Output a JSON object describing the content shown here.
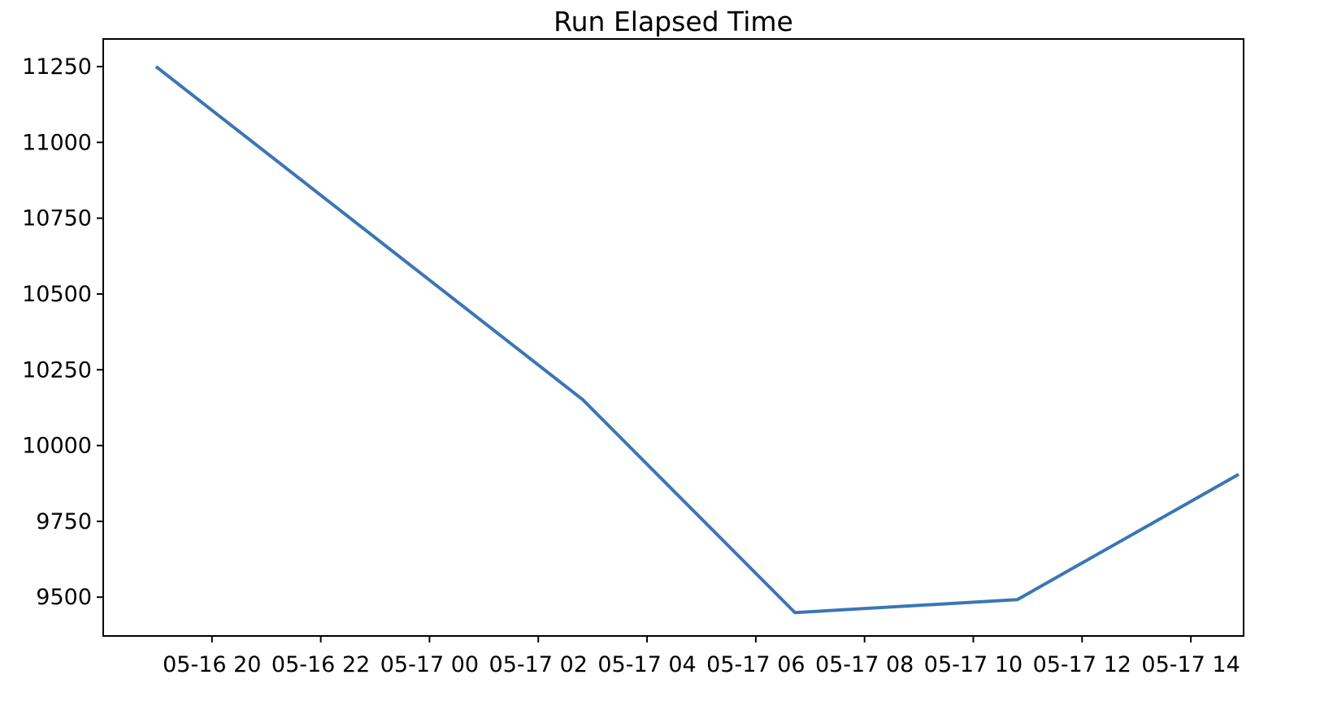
{
  "chart_data": {
    "type": "line",
    "title": "Run Elapsed Time",
    "grid": false,
    "legend": null,
    "background_color": "#ffffff",
    "axis_color": "#000000",
    "series": [
      {
        "name": "run-elapsed-time",
        "color": "#3b76b5",
        "line_width": 4,
        "points": [
          {
            "time": "05-16 19:00",
            "t_hours": 18.97,
            "value": 11250
          },
          {
            "time": "05-17 02:50",
            "t_hours": 26.82,
            "value": 10151
          },
          {
            "time": "05-17 06:45",
            "t_hours": 30.72,
            "value": 9449
          },
          {
            "time": "05-17 10:50",
            "t_hours": 34.81,
            "value": 9492
          },
          {
            "time": "05-17 14:55",
            "t_hours": 38.88,
            "value": 9905
          }
        ]
      }
    ],
    "x_axis": {
      "label": "",
      "tick_labels": [
        "05-16 20",
        "05-16 22",
        "05-17 00",
        "05-17 02",
        "05-17 04",
        "05-17 06",
        "05-17 08",
        "05-17 10",
        "05-17 12",
        "05-17 14"
      ],
      "tick_t_hours": [
        20,
        22,
        24,
        26,
        28,
        30,
        32,
        34,
        36,
        38
      ],
      "range_hours": [
        18.0,
        38.97
      ]
    },
    "y_axis": {
      "label": "",
      "tick_labels": [
        "11250",
        "11000",
        "10750",
        "10500",
        "10250",
        "10000",
        "9750",
        "9500"
      ],
      "tick_values": [
        11250,
        11000,
        10750,
        10500,
        10250,
        10000,
        9750,
        9500
      ],
      "range": [
        9372,
        11341
      ]
    }
  }
}
